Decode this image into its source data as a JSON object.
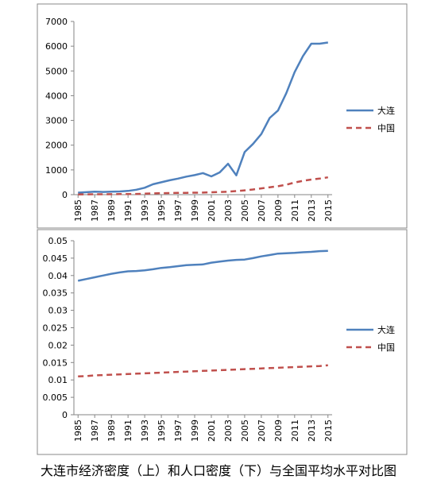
{
  "chart_data": [
    {
      "type": "line",
      "x": [
        1985,
        1986,
        1987,
        1988,
        1989,
        1990,
        1991,
        1992,
        1993,
        1994,
        1995,
        1996,
        1997,
        1998,
        1999,
        2000,
        2001,
        2002,
        2003,
        2004,
        2005,
        2006,
        2007,
        2008,
        2009,
        2010,
        2011,
        2012,
        2013,
        2014,
        2015
      ],
      "xlim": [
        1984.5,
        2015.5
      ],
      "xticks": [
        1985,
        1987,
        1989,
        1991,
        1993,
        1995,
        1997,
        1999,
        2001,
        2003,
        2005,
        2007,
        2009,
        2011,
        2013,
        2015
      ],
      "ylim": [
        0,
        7000
      ],
      "yticks": [
        0,
        1000,
        2000,
        3000,
        4000,
        5000,
        6000,
        7000
      ],
      "series": [
        {
          "name": "大连",
          "color": "#4f81bd",
          "style": "solid",
          "values": [
            80,
            100,
            120,
            110,
            120,
            130,
            150,
            200,
            280,
            420,
            500,
            580,
            650,
            730,
            790,
            870,
            740,
            900,
            1250,
            780,
            1720,
            2050,
            2450,
            3100,
            3400,
            4100,
            4950,
            5600,
            6100,
            6100,
            6150
          ]
        },
        {
          "name": "中国",
          "color": "#c0504d",
          "style": "dashed",
          "values": [
            10,
            12,
            15,
            17,
            20,
            22,
            25,
            30,
            40,
            50,
            60,
            65,
            70,
            75,
            80,
            85,
            95,
            105,
            120,
            145,
            175,
            210,
            255,
            300,
            340,
            400,
            490,
            560,
            610,
            650,
            700
          ]
        }
      ]
    },
    {
      "type": "line",
      "x": [
        1985,
        1986,
        1987,
        1988,
        1989,
        1990,
        1991,
        1992,
        1993,
        1994,
        1995,
        1996,
        1997,
        1998,
        1999,
        2000,
        2001,
        2002,
        2003,
        2004,
        2005,
        2006,
        2007,
        2008,
        2009,
        2010,
        2011,
        2012,
        2013,
        2014,
        2015
      ],
      "xlim": [
        1984.5,
        2015.5
      ],
      "xticks": [
        1985,
        1987,
        1989,
        1991,
        1993,
        1995,
        1997,
        1999,
        2001,
        2003,
        2005,
        2007,
        2009,
        2011,
        2013,
        2015
      ],
      "ylim": [
        0,
        0.05
      ],
      "yticks": [
        0,
        0.005,
        0.01,
        0.015,
        0.02,
        0.025,
        0.03,
        0.035,
        0.04,
        0.045,
        0.05
      ],
      "series": [
        {
          "name": "大连",
          "color": "#4f81bd",
          "style": "solid",
          "values": [
            0.0385,
            0.039,
            0.0395,
            0.04,
            0.0405,
            0.0409,
            0.0412,
            0.0413,
            0.0415,
            0.0418,
            0.0422,
            0.0424,
            0.0427,
            0.043,
            0.0431,
            0.0432,
            0.0437,
            0.044,
            0.0443,
            0.0445,
            0.0446,
            0.045,
            0.0455,
            0.0459,
            0.0463,
            0.0464,
            0.0465,
            0.0467,
            0.0468,
            0.047,
            0.0471
          ]
        },
        {
          "name": "中国",
          "color": "#c0504d",
          "style": "dashed",
          "values": [
            0.011,
            0.0111,
            0.0113,
            0.0114,
            0.0115,
            0.0116,
            0.0117,
            0.0118,
            0.0119,
            0.012,
            0.0121,
            0.0122,
            0.0123,
            0.0124,
            0.0125,
            0.0126,
            0.0127,
            0.0128,
            0.0129,
            0.013,
            0.0131,
            0.0132,
            0.0133,
            0.0134,
            0.0135,
            0.0136,
            0.0137,
            0.0138,
            0.0139,
            0.014,
            0.0142
          ]
        }
      ]
    }
  ],
  "caption": "大连市经济密度（上）和人口密度（下）与全国平均水平对比图"
}
